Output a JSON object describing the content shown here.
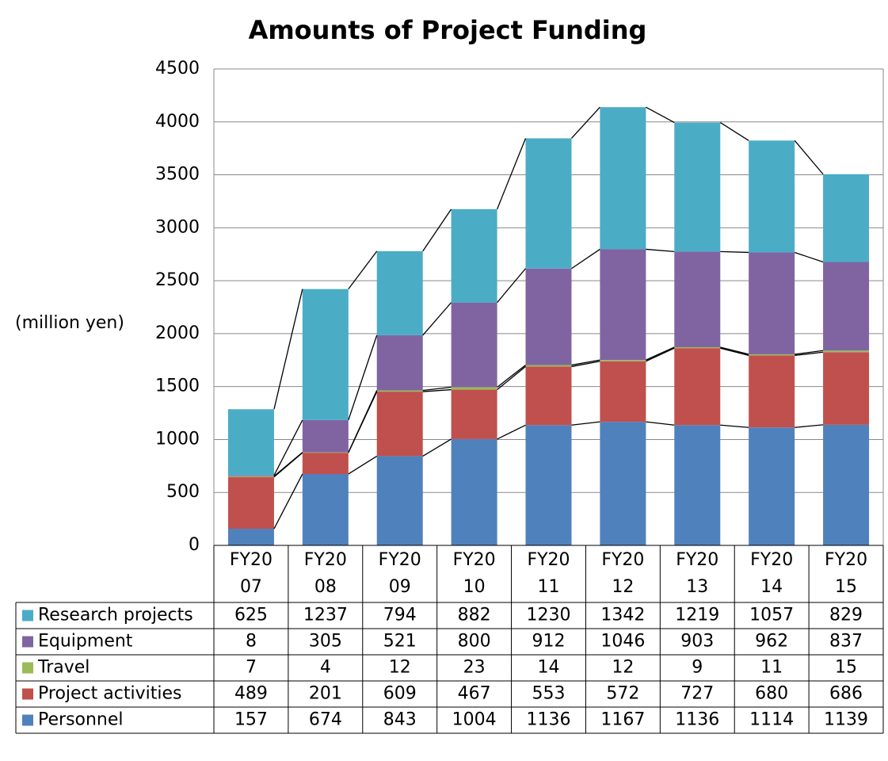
{
  "chart_data": {
    "type": "bar",
    "stacked": true,
    "title": "Amounts of Project Funding",
    "y_label": "(million yen)",
    "categories": [
      "FY2007",
      "FY2008",
      "FY2009",
      "FY2010",
      "FY2011",
      "FY2012",
      "FY2013",
      "FY2014",
      "FY2015"
    ],
    "series": [
      {
        "name": "Personnel",
        "color": "#4f81bd",
        "values": [
          157,
          674,
          843,
          1004,
          1136,
          1167,
          1136,
          1114,
          1139
        ]
      },
      {
        "name": "Project activities",
        "color": "#c0504d",
        "values": [
          489,
          201,
          609,
          467,
          553,
          572,
          727,
          680,
          686
        ]
      },
      {
        "name": "Travel",
        "color": "#9bbb59",
        "values": [
          7,
          4,
          12,
          23,
          14,
          12,
          9,
          11,
          15
        ]
      },
      {
        "name": "Equipment",
        "color": "#8064a2",
        "values": [
          8,
          305,
          521,
          800,
          912,
          1046,
          903,
          962,
          837
        ]
      },
      {
        "name": "Research projects",
        "color": "#4bacc6",
        "values": [
          625,
          1237,
          794,
          882,
          1230,
          1342,
          1219,
          1057,
          829
        ]
      }
    ],
    "ylim": [
      0,
      4500
    ],
    "yticks": [
      0,
      500,
      1000,
      1500,
      2000,
      2500,
      3000,
      3500,
      4000,
      4500
    ],
    "grid": true
  }
}
